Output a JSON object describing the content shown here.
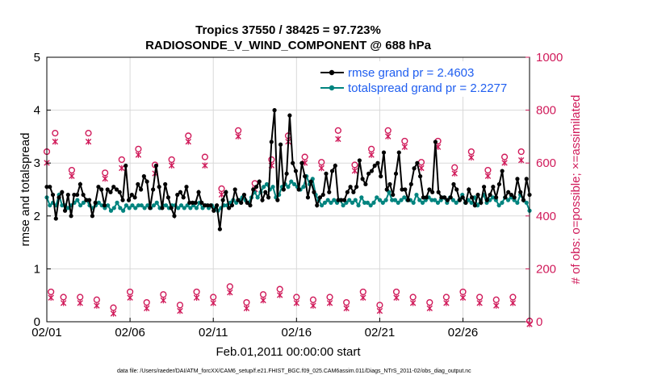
{
  "chart_data": {
    "type": "line",
    "title_line1": "Tropics 37550 / 38425 = 97.723%",
    "title_line2": "RADIOSONDE_V_WIND_COMPONENT @ 688 hPa",
    "xlabel": "Feb.01,2011 00:00:00 start",
    "ylabel_left": "rmse and totalspread",
    "ylabel_right": "# of obs: o=possible; ×=assimilated",
    "footnote": "data file: /Users/raeder/DAI/ATM_forcXX/CAM6_setup/f.e21.FHIST_BGC.f09_025.CAM6assim.011/Diags_NTrS_2011-02/obs_diag_output.nc",
    "x_range_days": [
      0,
      29
    ],
    "x_ticks": [
      {
        "day": 0,
        "label": "02/01"
      },
      {
        "day": 5,
        "label": "02/06"
      },
      {
        "day": 10,
        "label": "02/11"
      },
      {
        "day": 15,
        "label": "02/16"
      },
      {
        "day": 20,
        "label": "02/21"
      },
      {
        "day": 25,
        "label": "02/26"
      }
    ],
    "ylim_left": [
      0,
      5
    ],
    "yticks_left": [
      "0",
      "1",
      "2",
      "3",
      "4",
      "5"
    ],
    "ylim_right": [
      0,
      1000
    ],
    "yticks_right": [
      "0",
      "200",
      "400",
      "600",
      "800",
      "1000"
    ],
    "legend": [
      {
        "label": "rmse grand pr = 2.4603",
        "series": "rmse"
      },
      {
        "label": "totalspread grand pr = 2.2277",
        "series": "totalspread"
      }
    ],
    "legend_position": "top-right",
    "colors": {
      "rmse": "#000000",
      "totalspread": "#00847f",
      "obs": "#d01a5a",
      "legend_text": "#1f5ef0"
    },
    "series": [
      {
        "name": "rmse",
        "axis": "left",
        "marker": "dot",
        "values": [
          2.55,
          2.55,
          2.4,
          1.95,
          2.35,
          2.45,
          2.1,
          2.4,
          2.0,
          2.4,
          2.4,
          2.6,
          2.4,
          2.3,
          2.3,
          2.0,
          2.25,
          2.55,
          2.5,
          2.2,
          2.5,
          2.45,
          2.55,
          2.5,
          2.45,
          2.3,
          2.95,
          2.3,
          2.4,
          2.35,
          2.6,
          2.5,
          2.75,
          2.65,
          2.15,
          2.5,
          2.95,
          2.55,
          2.15,
          2.6,
          2.35,
          2.15,
          2.0,
          2.4,
          2.45,
          2.35,
          2.55,
          2.25,
          2.25,
          2.25,
          2.45,
          2.25,
          2.2,
          2.2,
          2.2,
          2.1,
          2.2,
          1.75,
          2.3,
          2.45,
          2.15,
          2.2,
          2.5,
          2.3,
          2.25,
          2.4,
          2.25,
          2.2,
          2.5,
          2.55,
          2.65,
          2.3,
          2.45,
          2.35,
          3.4,
          4.0,
          2.3,
          3.35,
          2.5,
          2.8,
          3.9,
          3.0,
          2.85,
          2.5,
          3.0,
          2.75,
          2.35,
          2.65,
          2.45,
          2.2,
          2.35,
          2.4,
          2.8,
          2.45,
          2.85,
          2.95,
          2.3,
          2.3,
          2.3,
          2.45,
          2.55,
          2.45,
          2.55,
          3.05,
          2.7,
          2.6,
          2.8,
          2.85,
          2.95,
          3.0,
          2.75,
          3.2,
          2.5,
          2.6,
          2.4,
          2.8,
          3.2,
          2.5,
          2.5,
          2.3,
          2.6,
          2.9,
          3.0,
          2.75,
          2.35,
          2.35,
          2.5,
          2.45,
          3.4,
          2.45,
          2.35,
          2.35,
          2.3,
          2.35,
          2.6,
          2.5,
          2.3,
          2.35,
          2.25,
          2.5,
          2.35,
          2.2,
          2.4,
          2.25,
          2.55,
          2.3,
          2.4,
          2.55,
          2.35,
          2.6,
          2.85,
          2.35,
          2.45,
          2.4,
          2.35,
          2.7,
          2.45,
          2.3,
          2.7,
          2.4
        ],
        "note": "one value per 6-hour step starting at day 0"
      },
      {
        "name": "totalspread",
        "axis": "left",
        "marker": "dot",
        "values": [
          2.35,
          2.2,
          2.25,
          2.2,
          2.4,
          2.2,
          2.2,
          2.15,
          2.2,
          2.25,
          2.3,
          2.2,
          2.25,
          2.3,
          2.2,
          2.15,
          2.2,
          2.25,
          2.2,
          2.15,
          2.2,
          2.1,
          2.15,
          2.25,
          2.15,
          2.1,
          2.2,
          2.15,
          2.2,
          2.15,
          2.2,
          2.2,
          2.15,
          2.2,
          2.15,
          2.2,
          2.25,
          2.15,
          2.2,
          2.2,
          2.15,
          2.2,
          2.2,
          2.15,
          2.2,
          2.15,
          2.2,
          2.15,
          2.2,
          2.15,
          2.25,
          2.15,
          2.2,
          2.15,
          2.2,
          2.15,
          2.1,
          2.15,
          2.2,
          2.2,
          2.25,
          2.3,
          2.25,
          2.3,
          2.35,
          2.3,
          2.25,
          2.35,
          2.45,
          2.35,
          2.45,
          2.55,
          2.6,
          2.5,
          2.55,
          2.35,
          2.4,
          2.55,
          2.6,
          2.55,
          2.65,
          2.6,
          2.55,
          2.5,
          2.55,
          2.75,
          2.6,
          2.7,
          2.4,
          2.3,
          2.2,
          2.25,
          2.3,
          2.25,
          2.3,
          2.25,
          2.3,
          2.2,
          2.25,
          2.3,
          2.25,
          2.3,
          2.2,
          2.35,
          2.25,
          2.25,
          2.2,
          2.25,
          2.35,
          2.3,
          2.25,
          2.3,
          2.45,
          2.3,
          2.3,
          2.25,
          2.3,
          2.35,
          2.3,
          2.3,
          2.25,
          2.4,
          2.3,
          2.25,
          2.3,
          2.35,
          2.3,
          2.3,
          2.25,
          2.3,
          2.35,
          2.25,
          2.35,
          2.3,
          2.25,
          2.3,
          2.4,
          2.25,
          2.3,
          2.25,
          2.35,
          2.2,
          2.3,
          2.4,
          2.25,
          2.3,
          2.35,
          2.3,
          2.2,
          2.25,
          2.35,
          2.3,
          2.35,
          2.3,
          2.25,
          2.4,
          2.3,
          2.25,
          2.1
        ]
      },
      {
        "name": "obs_possible",
        "axis": "right",
        "marker": "circle",
        "points": [
          [
            0,
            640
          ],
          [
            0.25,
            110
          ],
          [
            0.5,
            710
          ],
          [
            1,
            90
          ],
          [
            1.5,
            570
          ],
          [
            2,
            90
          ],
          [
            2.5,
            710
          ],
          [
            3,
            80
          ],
          [
            3.5,
            560
          ],
          [
            4,
            50
          ],
          [
            4.5,
            610
          ],
          [
            5,
            110
          ],
          [
            5.5,
            650
          ],
          [
            6,
            70
          ],
          [
            6.5,
            590
          ],
          [
            7,
            100
          ],
          [
            7.5,
            610
          ],
          [
            8,
            60
          ],
          [
            8.5,
            700
          ],
          [
            9,
            110
          ],
          [
            9.5,
            620
          ],
          [
            10,
            90
          ],
          [
            10.5,
            500
          ],
          [
            11,
            130
          ],
          [
            11.5,
            720
          ],
          [
            12,
            70
          ],
          [
            12.5,
            520
          ],
          [
            13,
            100
          ],
          [
            13.5,
            610
          ],
          [
            14,
            120
          ],
          [
            14.5,
            700
          ],
          [
            15,
            90
          ],
          [
            15.5,
            620
          ],
          [
            16,
            80
          ],
          [
            16.5,
            600
          ],
          [
            17,
            90
          ],
          [
            17.5,
            720
          ],
          [
            18,
            70
          ],
          [
            18.5,
            590
          ],
          [
            19,
            110
          ],
          [
            19.5,
            650
          ],
          [
            20,
            60
          ],
          [
            20.5,
            720
          ],
          [
            21,
            110
          ],
          [
            21.5,
            680
          ],
          [
            22,
            90
          ],
          [
            22.5,
            600
          ],
          [
            23,
            70
          ],
          [
            23.5,
            680
          ],
          [
            24,
            90
          ],
          [
            24.5,
            580
          ],
          [
            25,
            110
          ],
          [
            25.5,
            640
          ],
          [
            26,
            90
          ],
          [
            26.5,
            570
          ],
          [
            27,
            80
          ],
          [
            27.5,
            620
          ],
          [
            28,
            90
          ],
          [
            28.5,
            640
          ],
          [
            29,
            0
          ]
        ]
      },
      {
        "name": "obs_assimilated",
        "axis": "right",
        "marker": "x",
        "points": [
          [
            0,
            610
          ],
          [
            0.25,
            100
          ],
          [
            0.5,
            690
          ],
          [
            1,
            80
          ],
          [
            1.5,
            560
          ],
          [
            2,
            80
          ],
          [
            2.5,
            690
          ],
          [
            3,
            70
          ],
          [
            3.5,
            550
          ],
          [
            4,
            40
          ],
          [
            4.5,
            590
          ],
          [
            5,
            100
          ],
          [
            5.5,
            640
          ],
          [
            6,
            60
          ],
          [
            6.5,
            570
          ],
          [
            7,
            90
          ],
          [
            7.5,
            600
          ],
          [
            8,
            50
          ],
          [
            8.5,
            690
          ],
          [
            9,
            100
          ],
          [
            9.5,
            600
          ],
          [
            10,
            80
          ],
          [
            10.5,
            490
          ],
          [
            11,
            120
          ],
          [
            11.5,
            710
          ],
          [
            12,
            60
          ],
          [
            12.5,
            510
          ],
          [
            13,
            90
          ],
          [
            13.5,
            600
          ],
          [
            14,
            110
          ],
          [
            14.5,
            690
          ],
          [
            15,
            80
          ],
          [
            15.5,
            610
          ],
          [
            16,
            70
          ],
          [
            16.5,
            590
          ],
          [
            17,
            80
          ],
          [
            17.5,
            700
          ],
          [
            18,
            60
          ],
          [
            18.5,
            580
          ],
          [
            19,
            100
          ],
          [
            19.5,
            640
          ],
          [
            20,
            50
          ],
          [
            20.5,
            710
          ],
          [
            21,
            100
          ],
          [
            21.5,
            670
          ],
          [
            22,
            80
          ],
          [
            22.5,
            590
          ],
          [
            23,
            60
          ],
          [
            23.5,
            670
          ],
          [
            24,
            80
          ],
          [
            24.5,
            570
          ],
          [
            25,
            100
          ],
          [
            25.5,
            630
          ],
          [
            26,
            80
          ],
          [
            26.5,
            560
          ],
          [
            27,
            70
          ],
          [
            27.5,
            610
          ],
          [
            28,
            80
          ],
          [
            28.5,
            620
          ],
          [
            29,
            0
          ]
        ]
      }
    ]
  }
}
